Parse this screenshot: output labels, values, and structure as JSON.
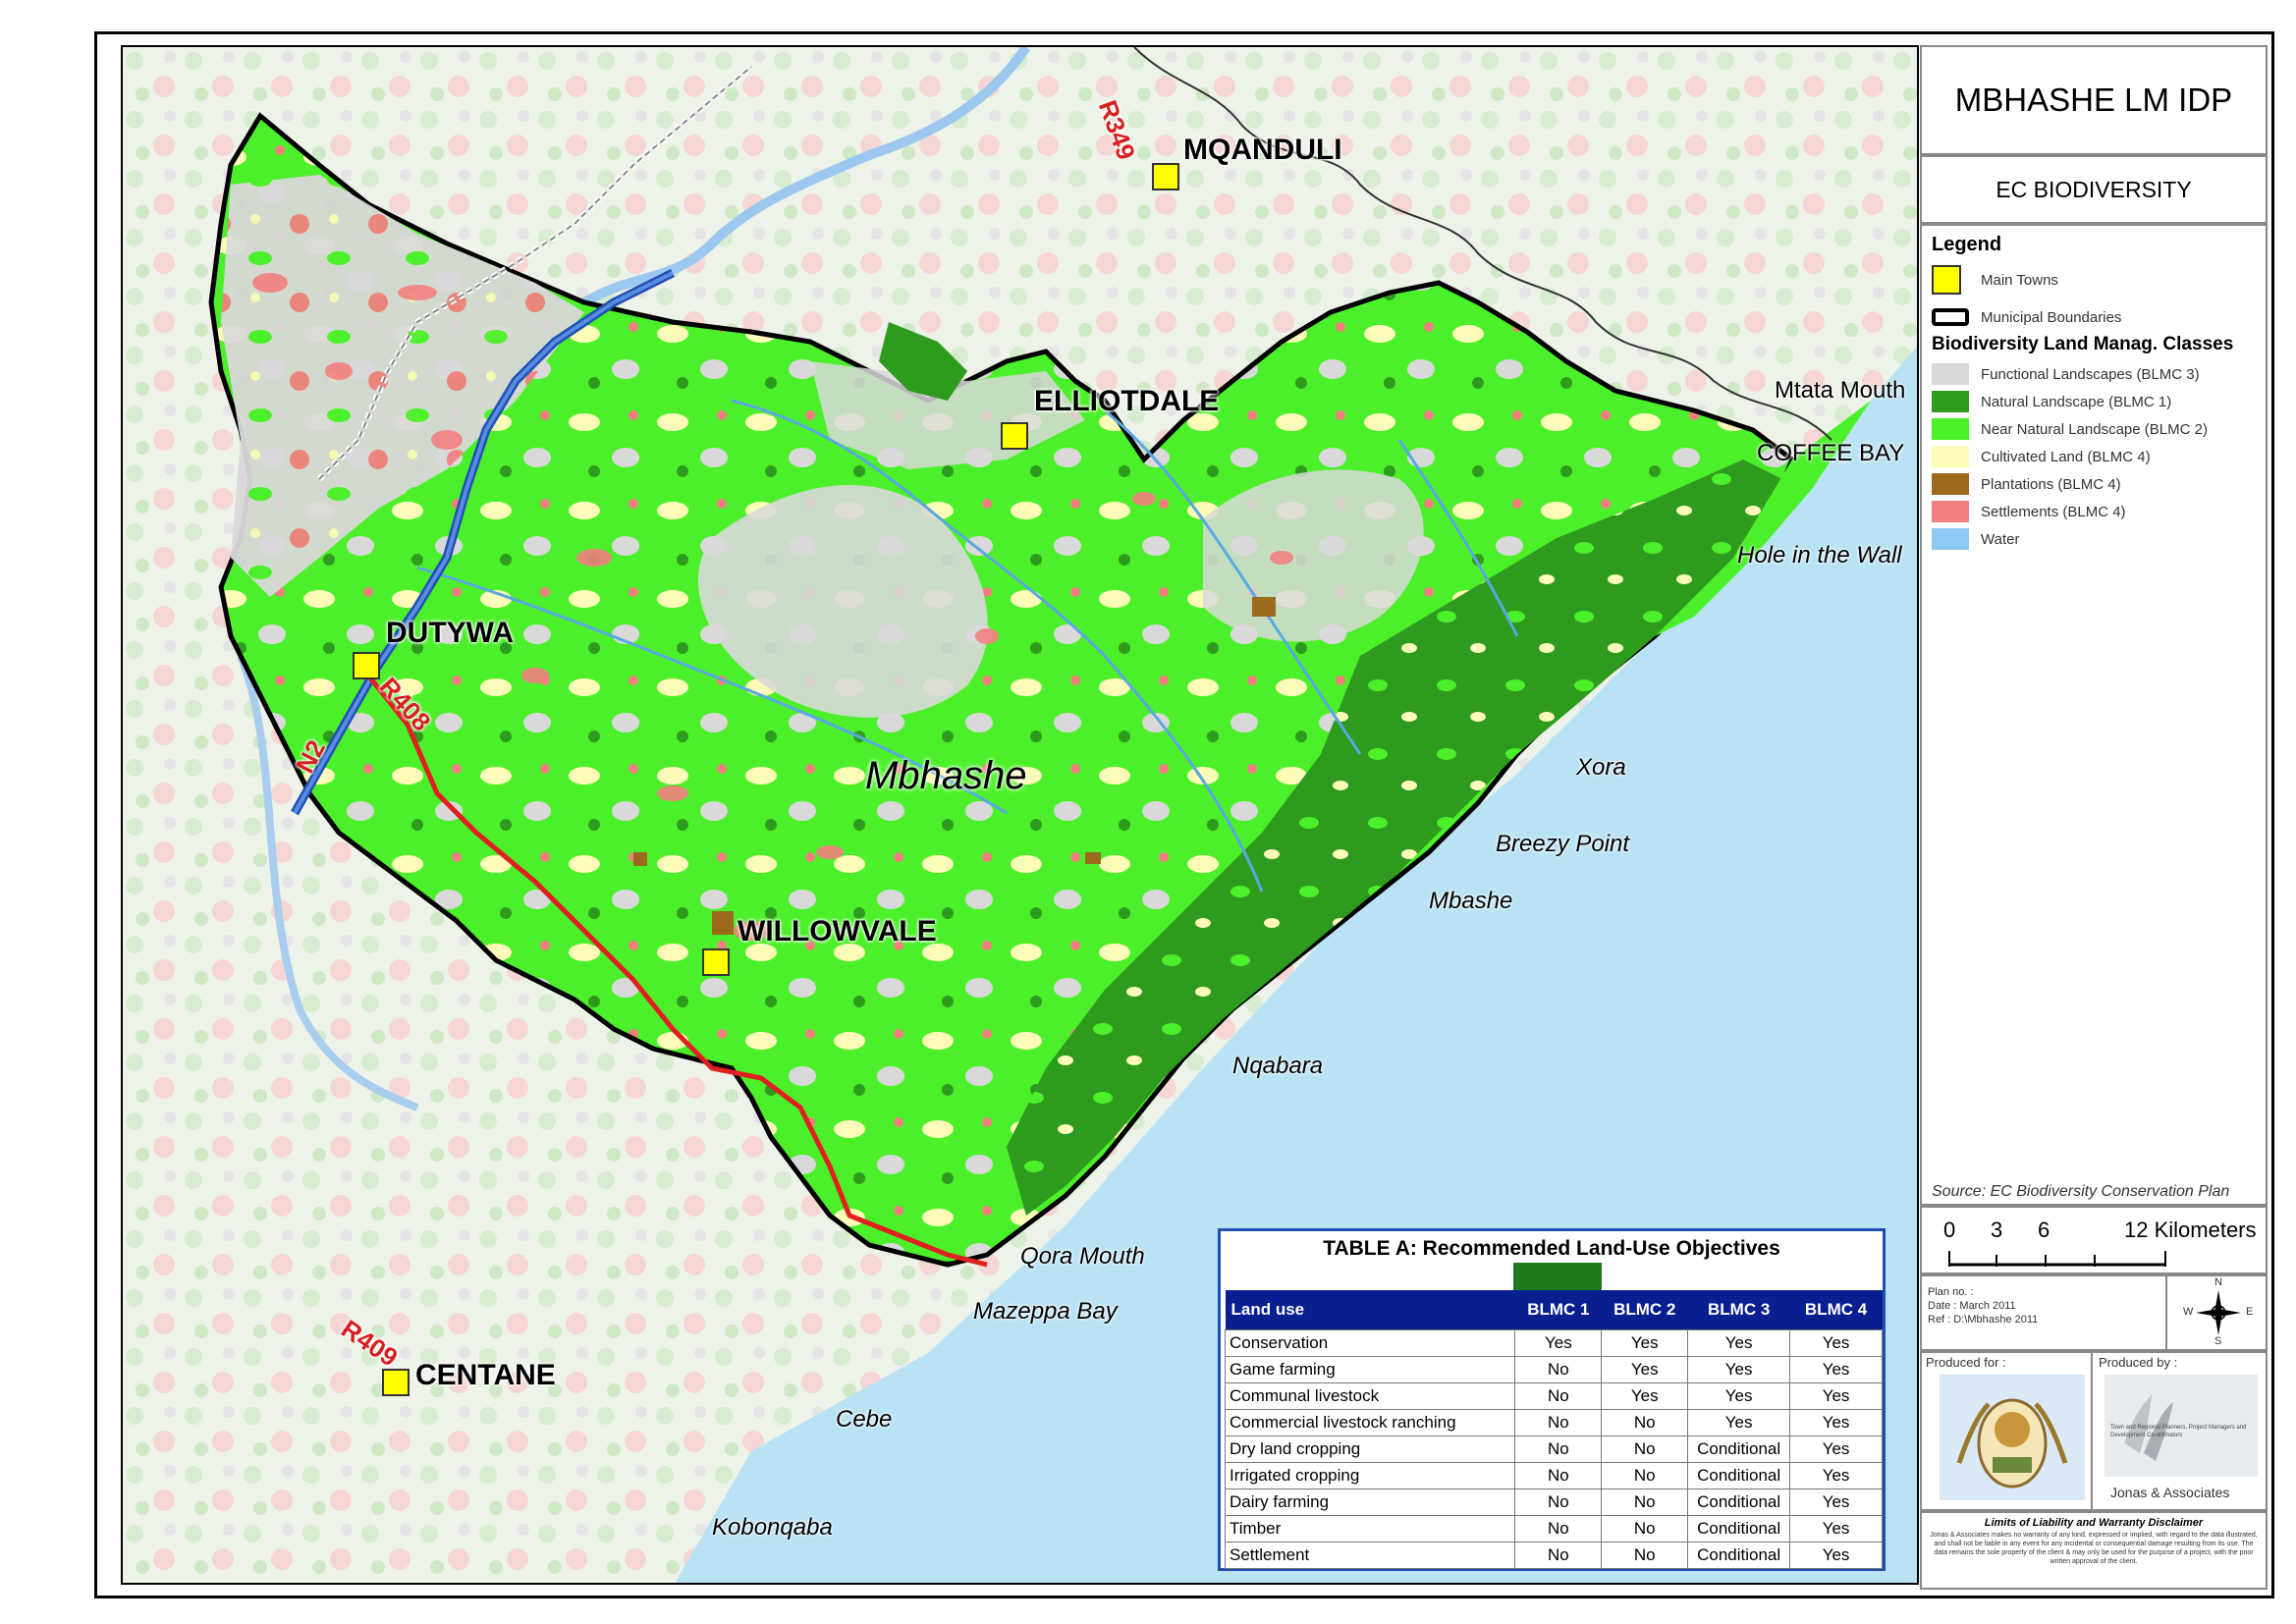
{
  "panel": {
    "title": "MBHASHE LM IDP",
    "subtitle": "EC BIODIVERSITY",
    "legend_title": "Legend",
    "legend_items": [
      {
        "label": "Main Towns",
        "color": "#ffff00",
        "kind": "town"
      },
      {
        "label": "Municipal Boundaries",
        "color": "#000000",
        "kind": "boundary"
      }
    ],
    "classes_title": "Biodiversity Land Manag. Classes",
    "classes": [
      {
        "label": "Functional Landscapes (BLMC 3)",
        "color": "#d9d9d9"
      },
      {
        "label": "Natural Landscape (BLMC 1)",
        "color": "#2e9b1e"
      },
      {
        "label": "Near Natural Landscape (BLMC 2)",
        "color": "#4cf02a"
      },
      {
        "label": "Cultivated Land (BLMC 4)",
        "color": "#fdfbb8"
      },
      {
        "label": "Plantations (BLMC 4)",
        "color": "#9b6a1c"
      },
      {
        "label": "Settlements (BLMC 4)",
        "color": "#f27f7f"
      },
      {
        "label": "Water",
        "color": "#8ec8f0"
      }
    ],
    "source": "Source: EC Biodiversity Conservation Plan",
    "scale": {
      "ticks": [
        "0",
        "3",
        "6",
        "12 Kilometers"
      ]
    },
    "plan": {
      "line1": "Plan no. :",
      "line2": "Date : March 2011",
      "line3": "Ref : D:\\Mbhashe 2011"
    },
    "north": {
      "n": "N",
      "s": "S",
      "e": "E",
      "w": "W"
    },
    "produced_for": "Produced for :",
    "produced_by": "Produced by :",
    "producer_name": "Jonas & Associates",
    "producer_tagline": "Town and Regional Planners, Project Managers and Development Co-ordinators",
    "disclaimer_title": "Limits of Liability and Warranty Disclaimer",
    "disclaimer_text": "Jonas & Associates makes no warranty of any kind, expressed or implied, with regard to the data illustrated, and shall not be liable in any event for any incidental or consequential damage resulting from its use. The data remains the sole property of the client & may only be used for the purpose of a project, with the prior written approval of the client."
  },
  "map": {
    "towns": [
      {
        "name": "MQANDULI"
      },
      {
        "name": "ELLIOTDALE"
      },
      {
        "name": "DUTYWA"
      },
      {
        "name": "WILLOWVALE"
      },
      {
        "name": "CENTANE"
      }
    ],
    "coast_places": [
      "Mtata Mouth",
      "COFFEE BAY",
      "Hole in the Wall",
      "Xora",
      "Breezy Point",
      "Mbashe",
      "Nqabara",
      "Qora Mouth",
      "Mazeppa Bay",
      "Cebe",
      "Kobonqaba"
    ],
    "region": "Mbhashe",
    "roads": [
      "R349",
      "R408",
      "N2",
      "R409"
    ]
  },
  "table": {
    "title": "TABLE A: Recommended Land-Use Objectives",
    "headers": [
      "Land use",
      "BLMC 1",
      "BLMC 2",
      "BLMC 3",
      "BLMC 4"
    ],
    "rows": [
      [
        "Conservation",
        "Yes",
        "Yes",
        "Yes",
        "Yes"
      ],
      [
        "Game farming",
        "No",
        "Yes",
        "Yes",
        "Yes"
      ],
      [
        "Communal livestock",
        "No",
        "Yes",
        "Yes",
        "Yes"
      ],
      [
        "Commercial livestock ranching",
        "No",
        "No",
        "Yes",
        "Yes"
      ],
      [
        "Dry land cropping",
        "No",
        "No",
        "Conditional",
        "Yes"
      ],
      [
        "Irrigated cropping",
        "No",
        "No",
        "Conditional",
        "Yes"
      ],
      [
        "Dairy farming",
        "No",
        "No",
        "Conditional",
        "Yes"
      ],
      [
        "Timber",
        "No",
        "No",
        "Conditional",
        "Yes"
      ],
      [
        "Settlement",
        "No",
        "No",
        "Conditional",
        "Yes"
      ]
    ]
  }
}
